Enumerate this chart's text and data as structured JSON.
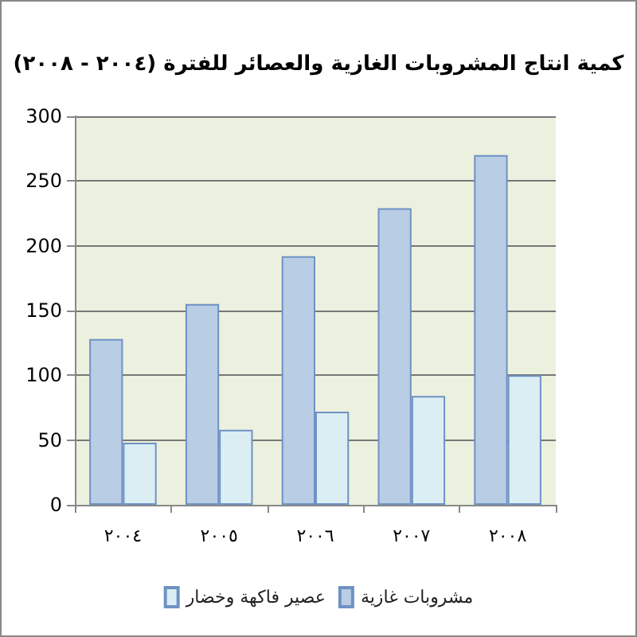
{
  "chart_data": {
    "type": "bar",
    "title": "كمية انتاج المشروبات الغازية والعصائر للفترة (٢٠٠٤ - ٢٠٠٨)",
    "categories": [
      "٢٠٠٤",
      "٢٠٠٥",
      "٢٠٠٦",
      "٢٠٠٧",
      "٢٠٠٨"
    ],
    "series": [
      {
        "name": "مشروبات غازية",
        "color": "#b9cde5",
        "values": [
          128,
          155,
          192,
          229,
          270
        ]
      },
      {
        "name": "عصير فاكهة وخضار",
        "color": "#dbeef4",
        "values": [
          48,
          58,
          72,
          84,
          100
        ]
      }
    ],
    "ylim": [
      0,
      300
    ],
    "yticks": [
      0,
      50,
      100,
      150,
      200,
      250,
      300
    ],
    "grid": "y",
    "legend": "bottom"
  }
}
